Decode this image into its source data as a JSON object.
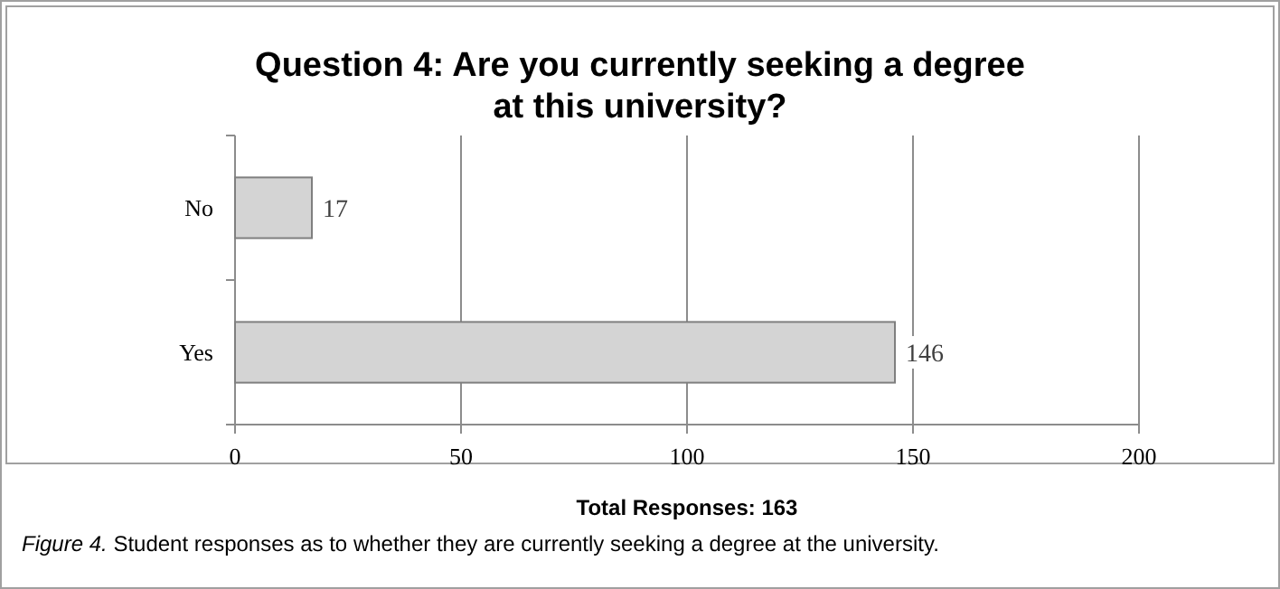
{
  "chart_data": {
    "type": "bar",
    "orientation": "horizontal",
    "title": "Question 4: Are you currently seeking a degree at this university?",
    "xlabel": "Total Responses: 163",
    "categories": [
      "No",
      "Yes"
    ],
    "values": [
      17,
      146
    ],
    "color": "#d4d4d4",
    "data_labels": true,
    "xlim": [
      0,
      200
    ],
    "xticks": [
      0,
      50,
      100,
      150,
      200
    ],
    "grid": "x",
    "annotations": [
      "Figure 4. Student responses as to whether they are currently seeking a degree at the university."
    ]
  }
}
